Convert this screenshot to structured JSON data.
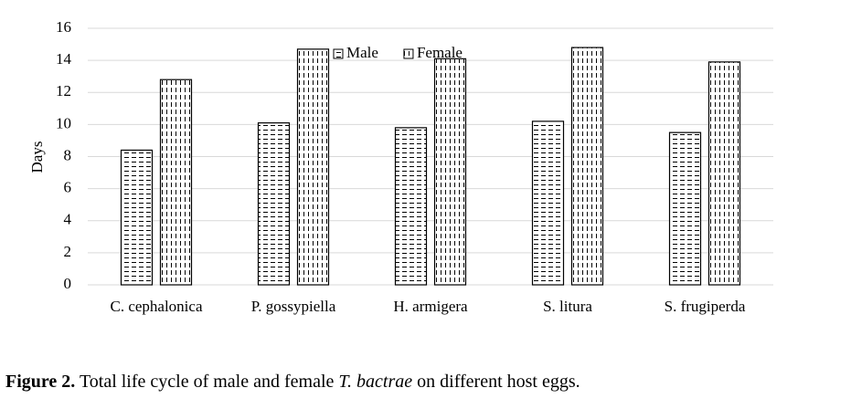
{
  "chart_data": {
    "type": "bar",
    "y_label": "Days",
    "categories": [
      "C. cephalonica",
      "P. gossypiella",
      "H. armigera",
      "S. litura",
      "S. frugiperda"
    ],
    "series": [
      {
        "name": "Male",
        "color": "#000000",
        "pattern": "horizontal-dash",
        "values": [
          8.4,
          10.1,
          9.8,
          10.2,
          9.5
        ]
      },
      {
        "name": "Female",
        "color": "#000000",
        "pattern": "vertical-dash",
        "values": [
          12.8,
          14.7,
          14.1,
          14.8,
          13.9
        ]
      }
    ],
    "ylim": [
      0,
      16
    ],
    "yticks": [
      0,
      2,
      4,
      6,
      8,
      10,
      12,
      14,
      16
    ],
    "grid": true,
    "legend": "top"
  },
  "caption": {
    "label": "Figure 2.",
    "text_before": "Total life cycle of male and female",
    "species": "T. bactrae",
    "text_after": "on different host eggs."
  }
}
